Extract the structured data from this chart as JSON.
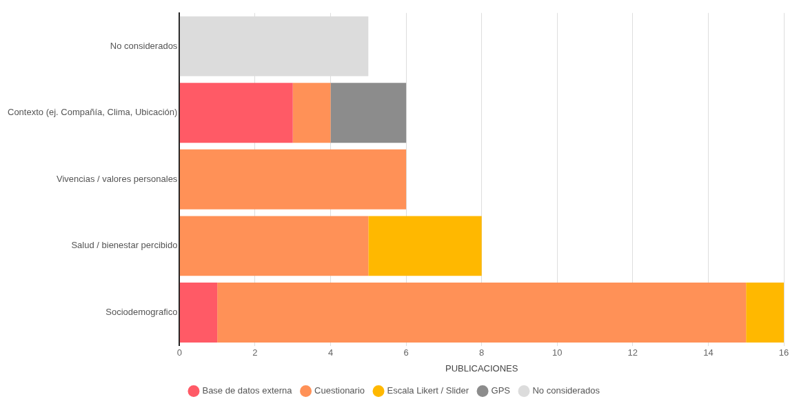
{
  "chart_data": {
    "type": "bar",
    "orientation": "horizontal",
    "stacked": true,
    "xlabel": "PUBLICACIONES",
    "categories": [
      "No considerados",
      "Contexto (ej. Compañía, Clima, Ubicación)",
      "Vivencias / valores personales",
      "Salud / bienestar percibido",
      "Sociodemografico"
    ],
    "series": [
      {
        "name": "Base de datos externa",
        "color": "#ff5a66",
        "values": [
          null,
          3,
          null,
          null,
          1
        ]
      },
      {
        "name": "Cuestionario",
        "color": "#ff9157",
        "values": [
          null,
          1,
          6,
          5,
          14
        ]
      },
      {
        "name": "Escala Likert / Slider",
        "color": "#ffb800",
        "values": [
          null,
          null,
          null,
          3,
          1
        ]
      },
      {
        "name": "GPS",
        "color": "#8c8c8c",
        "values": [
          null,
          2,
          null,
          null,
          null
        ]
      },
      {
        "name": "No considerados",
        "color": "#dcdcdc",
        "values": [
          5,
          null,
          null,
          null,
          null
        ]
      }
    ],
    "xlim": [
      0,
      16
    ],
    "xticks": [
      0,
      2,
      4,
      6,
      8,
      10,
      12,
      14,
      16
    ],
    "grid": "x",
    "legend": "bottom"
  }
}
